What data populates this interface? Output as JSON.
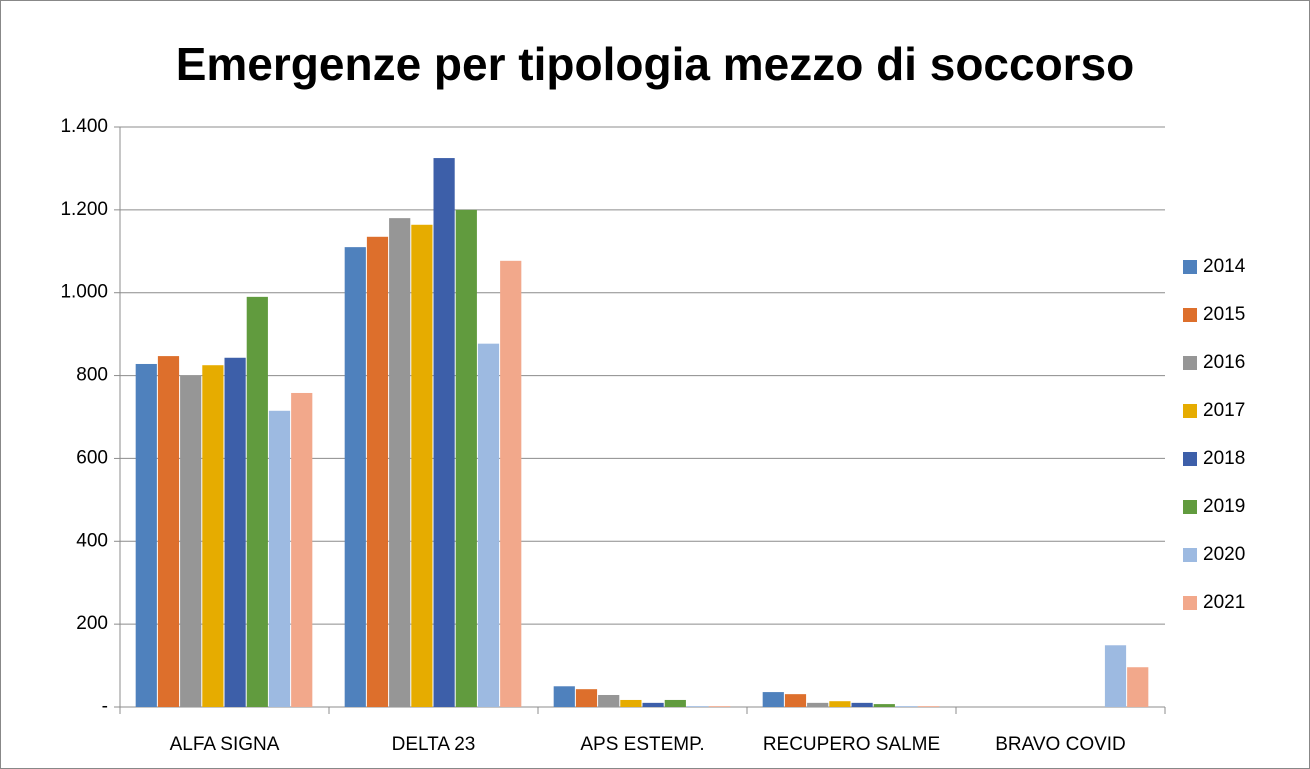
{
  "chart_data": {
    "type": "bar",
    "title": "Emergenze per tipologia mezzo di soccorso",
    "categories": [
      "ALFA SIGNA",
      "DELTA 23",
      "APS ESTEMP.",
      "RECUPERO SALME",
      "BRAVO COVID"
    ],
    "series": [
      {
        "name": "2014",
        "color": "#4f81bd",
        "values": [
          828,
          1110,
          50,
          36,
          0
        ]
      },
      {
        "name": "2015",
        "color": "#dd6f2c",
        "values": [
          847,
          1135,
          43,
          31,
          0
        ]
      },
      {
        "name": "2016",
        "color": "#969696",
        "values": [
          800,
          1180,
          29,
          10,
          0
        ]
      },
      {
        "name": "2017",
        "color": "#e6ac00",
        "values": [
          825,
          1164,
          17,
          14,
          0
        ]
      },
      {
        "name": "2018",
        "color": "#3d5fa9",
        "values": [
          843,
          1325,
          10,
          10,
          0
        ]
      },
      {
        "name": "2019",
        "color": "#619b3e",
        "values": [
          990,
          1200,
          17,
          7,
          0
        ]
      },
      {
        "name": "2020",
        "color": "#9dbae1",
        "values": [
          715,
          877,
          2,
          2,
          149
        ]
      },
      {
        "name": "2021",
        "color": "#f2a88b",
        "values": [
          758,
          1077,
          2,
          2,
          96
        ]
      }
    ],
    "ylim": [
      0,
      1400
    ],
    "yticks": [
      {
        "value": 0,
        "label": "-"
      },
      200,
      400,
      600,
      800,
      {
        "value": 1000,
        "label": "1.000"
      },
      {
        "value": 1200,
        "label": "1.200"
      },
      {
        "value": 1400,
        "label": "1.400"
      }
    ],
    "grid": true,
    "legend": "right"
  }
}
